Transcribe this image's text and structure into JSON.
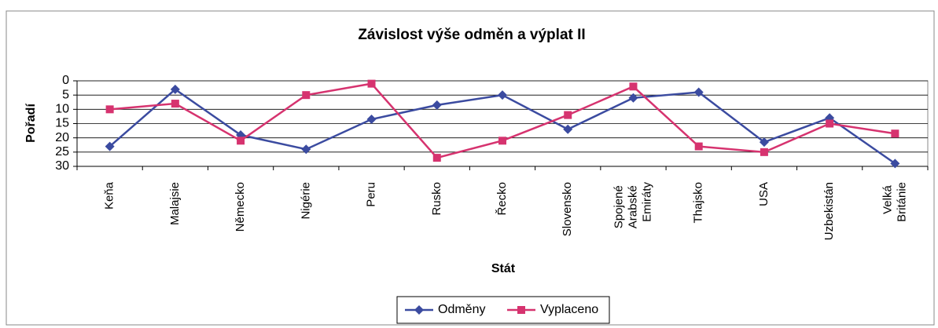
{
  "chart_data": {
    "type": "line",
    "title": "Závislost výše odměn a výplat II",
    "x_label": "Stát",
    "y_label": "Pořadí",
    "categories": [
      "Keňa",
      "Malajsie",
      "Německo",
      "Nigérie",
      "Peru",
      "Rusko",
      "Řecko",
      "Slovensko",
      "Spojené Arabské Emiráty",
      "Thajsko",
      "USA",
      "Uzbekistán",
      "Velká Británie"
    ],
    "series": [
      {
        "name": "Odměny",
        "color": "#3b4ba0",
        "marker": "diamond",
        "values": [
          23,
          3,
          19,
          24,
          13.5,
          8.5,
          5,
          17,
          6,
          4,
          21.5,
          13,
          29
        ]
      },
      {
        "name": "Vyplaceno",
        "color": "#d6336f",
        "marker": "square",
        "values": [
          10,
          8,
          21,
          5,
          1,
          27,
          21,
          12,
          2,
          23,
          25,
          15,
          18.5
        ]
      }
    ],
    "ylim": [
      0,
      30
    ],
    "yticks": [
      0,
      5,
      10,
      15,
      20,
      25,
      30
    ],
    "y_reversed": true,
    "grid": true,
    "legend": "bottom"
  }
}
